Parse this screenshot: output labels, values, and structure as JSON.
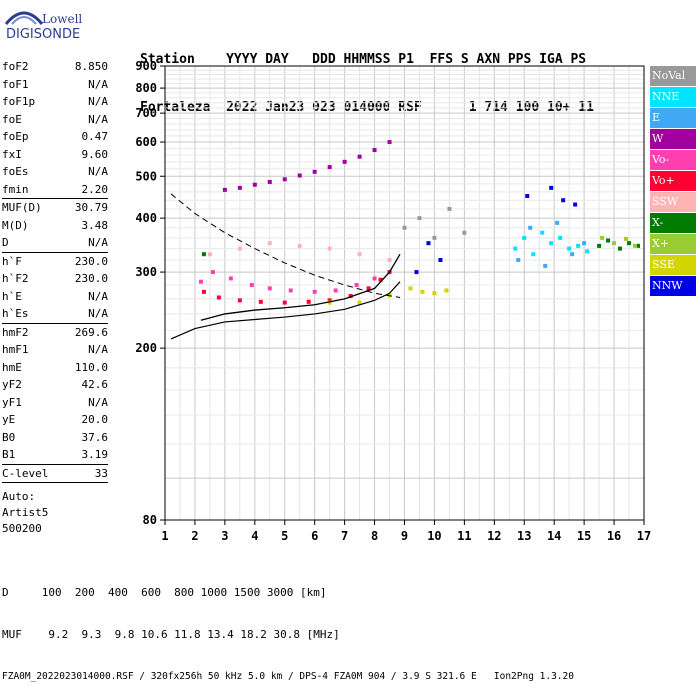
{
  "logo": {
    "line1": "Lowell",
    "line2": "DIGISONDE"
  },
  "header": {
    "line1": "Station    YYYY DAY   DDD HHMMSS P1  FFS S AXN PPS IGA PS",
    "line2": "Fortaleza  2022 Jan23 023 014000 RSF      1 714 100 10+ 11"
  },
  "params": {
    "group1": [
      {
        "name": "foF2",
        "value": "8.850"
      },
      {
        "name": "foF1",
        "value": "N/A"
      },
      {
        "name": "foF1p",
        "value": "N/A"
      },
      {
        "name": "foE",
        "value": "N/A"
      },
      {
        "name": "foEp",
        "value": "0.47"
      },
      {
        "name": "fxI",
        "value": "9.60"
      },
      {
        "name": "foEs",
        "value": "N/A"
      },
      {
        "name": "fmin",
        "value": "2.20"
      }
    ],
    "group2": [
      {
        "name": "MUF(D)",
        "value": "30.79"
      },
      {
        "name": "M(D)",
        "value": "3.48"
      },
      {
        "name": "D",
        "value": "N/A"
      }
    ],
    "group3": [
      {
        "name": "h`F",
        "value": "230.0"
      },
      {
        "name": "h`F2",
        "value": "230.0"
      },
      {
        "name": "h`E",
        "value": "N/A"
      },
      {
        "name": "h`Es",
        "value": "N/A"
      }
    ],
    "group4": [
      {
        "name": "hmF2",
        "value": "269.6"
      },
      {
        "name": "hmF1",
        "value": "N/A"
      },
      {
        "name": "hmE",
        "value": "110.0"
      },
      {
        "name": "yF2",
        "value": "42.6"
      },
      {
        "name": "yF1",
        "value": "N/A"
      },
      {
        "name": "yE",
        "value": "20.0"
      },
      {
        "name": "B0",
        "value": "37.6"
      },
      {
        "name": "B1",
        "value": "3.19"
      }
    ],
    "clevel": {
      "name": "C-level",
      "value": "33"
    },
    "auto": [
      "Auto:",
      "Artist5",
      "500200"
    ]
  },
  "legend": [
    {
      "label": "NoVal",
      "color": "#999999"
    },
    {
      "label": "NNE",
      "color": "#00e5ff"
    },
    {
      "label": "E",
      "color": "#3fa9f5"
    },
    {
      "label": "W",
      "color": "#a0009c"
    },
    {
      "label": "Vo-",
      "color": "#ff3fb0"
    },
    {
      "label": "Vo+",
      "color": "#ff0033"
    },
    {
      "label": "SSW",
      "color": "#ffb3b3"
    },
    {
      "label": "X-",
      "color": "#007a00"
    },
    {
      "label": "X+",
      "color": "#99cc33"
    },
    {
      "label": "SSE",
      "color": "#d4d400"
    },
    {
      "label": "NNW",
      "color": "#0000e6"
    }
  ],
  "footer": {
    "line1": "D     100  200  400  600  800 1000 1500 3000 [km]",
    "line2": "MUF    9.2  9.3  9.8 10.6 11.8 13.4 18.2 30.8 [MHz]",
    "line3": "FZA0M_2022023014000.RSF / 320fx256h 50 kHz 5.0 km / DPS-4 FZA0M 904 / 3.9 S 321.6 E   Ion2Png 1.3.20"
  },
  "chart_data": {
    "type": "scatter",
    "xlim": [
      1,
      17
    ],
    "ylim": [
      80,
      900
    ],
    "x_ticks": [
      1,
      2,
      3,
      4,
      5,
      6,
      7,
      8,
      9,
      10,
      11,
      12,
      13,
      14,
      15,
      16,
      17
    ],
    "y_ticks": [
      80,
      200,
      300,
      400,
      500,
      600,
      700,
      800,
      900
    ],
    "y_scale": "log",
    "grid": true,
    "series": [
      {
        "name": "Vo+",
        "color": "#ff0033",
        "x": [
          2.3,
          2.8,
          3.5,
          4.2,
          5.0,
          5.8,
          6.5,
          7.2,
          7.8,
          8.2,
          8.5
        ],
        "y": [
          270,
          262,
          258,
          256,
          255,
          256,
          258,
          264,
          275,
          288,
          300
        ]
      },
      {
        "name": "Vo-",
        "color": "#ff3fb0",
        "x": [
          2.2,
          2.6,
          3.2,
          3.9,
          4.5,
          5.2,
          6.0,
          6.7,
          7.4,
          8.0
        ],
        "y": [
          285,
          300,
          290,
          280,
          275,
          272,
          270,
          272,
          280,
          290
        ]
      },
      {
        "name": "SSW",
        "color": "#ffb3b3",
        "x": [
          2.5,
          3.5,
          4.5,
          5.5,
          6.5,
          7.5,
          8.5
        ],
        "y": [
          330,
          340,
          350,
          345,
          340,
          330,
          320
        ]
      },
      {
        "name": "W",
        "color": "#a0009c",
        "x": [
          3.0,
          3.5,
          4.0,
          4.5,
          5.0,
          5.5,
          6.0,
          6.5,
          7.0,
          7.5,
          8.0,
          8.5
        ],
        "y": [
          465,
          470,
          478,
          485,
          492,
          502,
          512,
          525,
          540,
          555,
          575,
          600
        ]
      },
      {
        "name": "NNE",
        "color": "#00e5ff",
        "x": [
          12.7,
          13.0,
          13.3,
          13.6,
          13.9,
          14.2,
          14.5,
          14.8,
          15.1
        ],
        "y": [
          340,
          360,
          330,
          370,
          350,
          360,
          340,
          345,
          335
        ]
      },
      {
        "name": "E",
        "color": "#3fa9f5",
        "x": [
          12.8,
          13.2,
          13.7,
          14.1,
          14.6,
          15.0
        ],
        "y": [
          320,
          380,
          310,
          390,
          330,
          350
        ]
      },
      {
        "name": "SSE",
        "color": "#d4d400",
        "x": [
          6.5,
          7.5,
          8.5,
          9.2,
          9.6,
          10.0,
          10.4
        ],
        "y": [
          255,
          255,
          265,
          275,
          270,
          268,
          272
        ]
      },
      {
        "name": "X-",
        "color": "#007a00",
        "x": [
          15.5,
          15.8,
          16.2,
          16.5,
          16.8,
          2.3
        ],
        "y": [
          345,
          355,
          340,
          350,
          345,
          330
        ]
      },
      {
        "name": "X+",
        "color": "#99cc33",
        "x": [
          15.6,
          16.0,
          16.4,
          16.7
        ],
        "y": [
          360,
          350,
          358,
          345
        ]
      },
      {
        "name": "NNW",
        "color": "#0000e6",
        "x": [
          9.4,
          9.8,
          10.2,
          13.1,
          13.9,
          14.3,
          14.7
        ],
        "y": [
          300,
          350,
          320,
          450,
          470,
          440,
          430
        ]
      },
      {
        "name": "NoVal",
        "color": "#999999",
        "x": [
          9.0,
          9.5,
          10.0,
          10.5,
          11.0
        ],
        "y": [
          380,
          400,
          360,
          420,
          370
        ]
      }
    ],
    "profile_trace": {
      "x": [
        1.2,
        2.0,
        3.0,
        4.0,
        5.0,
        6.0,
        7.0,
        8.0,
        8.5,
        8.85
      ],
      "y": [
        210,
        222,
        230,
        233,
        236,
        240,
        246,
        258,
        268,
        285
      ]
    },
    "dashed_trace": {
      "x": [
        1.2,
        2.0,
        3.0,
        4.0,
        5.0,
        6.0,
        7.0,
        8.0,
        8.85
      ],
      "y": [
        455,
        410,
        370,
        340,
        315,
        295,
        280,
        268,
        262
      ]
    },
    "muf_trace": {
      "x": [
        2.2,
        3.0,
        4.0,
        5.0,
        6.0,
        7.0,
        8.0,
        8.5,
        8.85
      ],
      "y": [
        232,
        240,
        245,
        248,
        252,
        260,
        275,
        300,
        330
      ]
    }
  }
}
